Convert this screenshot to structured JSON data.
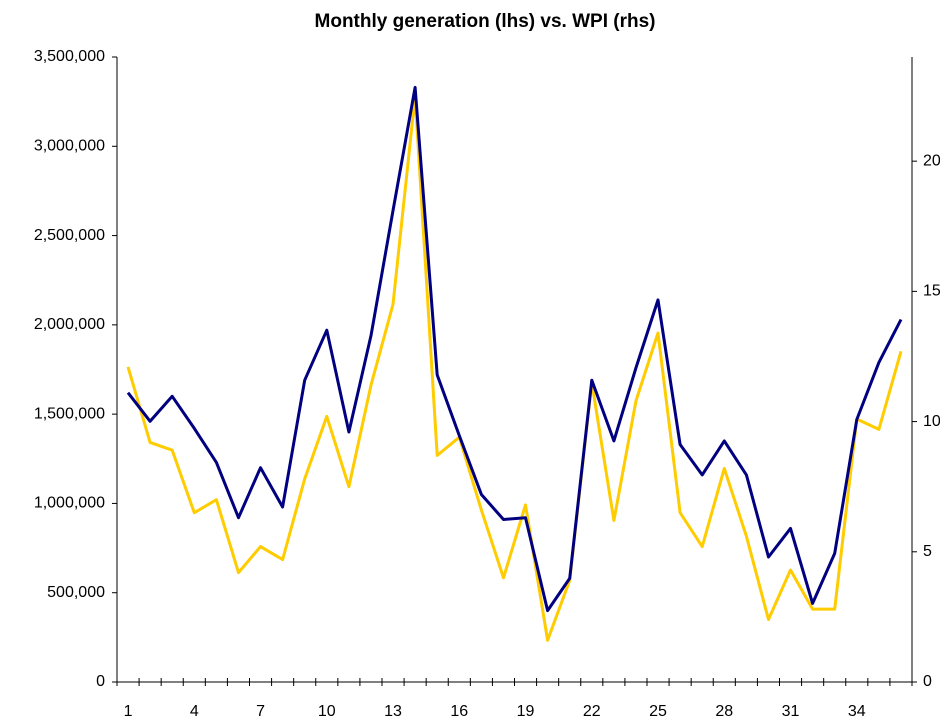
{
  "chart_data": {
    "type": "line",
    "title": "Monthly generation (lhs) vs. WPI (rhs)",
    "categories": [
      1,
      null,
      null,
      4,
      null,
      null,
      7,
      null,
      null,
      10,
      null,
      null,
      13,
      null,
      null,
      16,
      null,
      null,
      19,
      null,
      null,
      22,
      null,
      null,
      25,
      null,
      null,
      28,
      null,
      null,
      31,
      null,
      null,
      34,
      null,
      null
    ],
    "series": [
      {
        "color": "#000080",
        "values": [
          1620000,
          1460000,
          1600000,
          1420000,
          1230000,
          920000,
          1200000,
          980000,
          1690000,
          1970000,
          1400000,
          1940000,
          2640000,
          3330000,
          1720000,
          1380000,
          1050000,
          910000,
          920000,
          400000,
          580000,
          1690000,
          1350000,
          1760000,
          2140000,
          1330000,
          1160000,
          1350000,
          1160000,
          700000,
          860000,
          440000,
          720000,
          1470000,
          1790000,
          2030000
        ]
      },
      {
        "color": "#ffcc00",
        "axis": "y2",
        "values": [
          12.1,
          9.2,
          8.9,
          6.5,
          7.0,
          4.2,
          5.2,
          4.7,
          7.8,
          10.2,
          7.5,
          11.4,
          14.5,
          22.5,
          8.7,
          9.4,
          6.6,
          4.0,
          6.8,
          1.6,
          3.9,
          11.5,
          6.2,
          10.8,
          13.4,
          6.5,
          5.2,
          8.2,
          5.6,
          2.4,
          4.3,
          2.8,
          2.8,
          10.1,
          9.7,
          12.7
        ]
      }
    ],
    "ylim": [
      0,
      3500000
    ],
    "yticks": [
      0,
      {
        "value": 500000,
        "label": "500,000"
      },
      {
        "value": 1000000,
        "label": "1,000,000"
      },
      {
        "value": 1500000,
        "label": "1,500,000"
      },
      {
        "value": 2000000,
        "label": "2,000,000"
      },
      {
        "value": 2500000,
        "label": "2,500,000"
      },
      {
        "value": 3000000,
        "label": "3,000,000"
      },
      {
        "value": 3500000,
        "label": "3,500,000"
      }
    ],
    "y2lim": [
      0,
      24
    ],
    "y2ticks": [
      0,
      5,
      10,
      15,
      20
    ]
  }
}
